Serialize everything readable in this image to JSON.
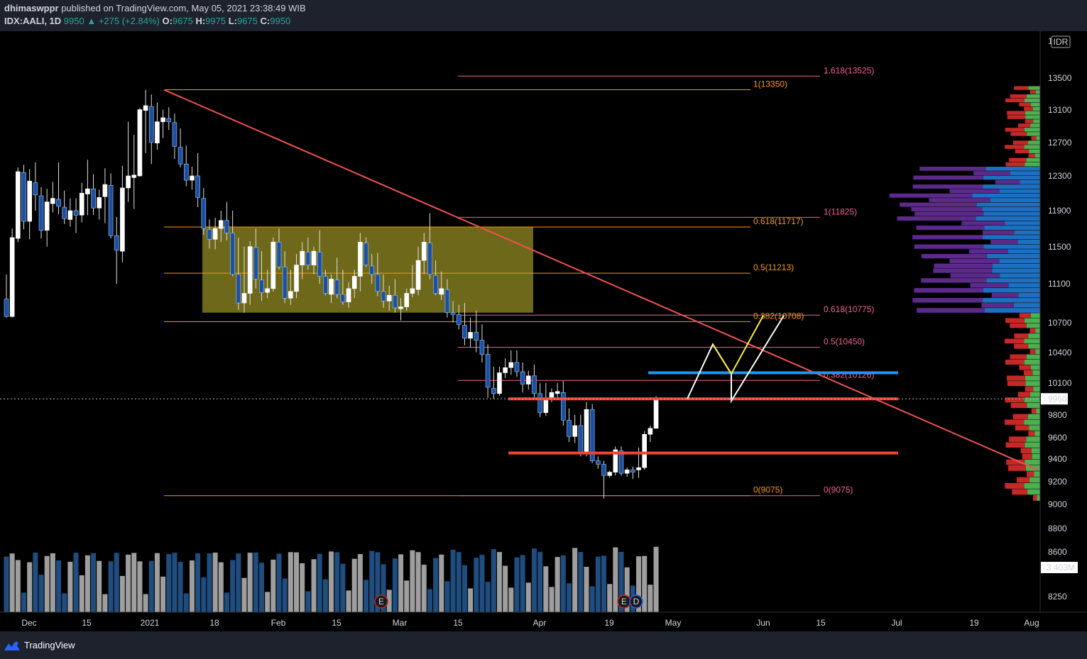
{
  "header": {
    "author": "dhimaswppr",
    "published_text": "published on TradingView.com, May 05, 2021 23:38:49 WIB",
    "symbol": "IDX:AALI, 1D",
    "last": "9950",
    "change": "▲ +275 (+2.84%)",
    "o_label": "O:",
    "o_val": "9675",
    "h_label": "H:",
    "h_val": "9975",
    "l_label": "L:",
    "l_val": "9675",
    "c_label": "C:",
    "c_val": "9950"
  },
  "footer": {
    "brand": "TradingView"
  },
  "colors": {
    "background": "#000000",
    "up_candle": "#ffffff",
    "down_candle": "#1e4fa3",
    "volume_up": "#9e9e9e",
    "volume_down": "#1f4d7f",
    "trendline": "#ef5350",
    "support": "#f44336",
    "blue_level": "#2196f3",
    "box_fill": "#807a1e",
    "fib_orange": "#ff9800",
    "fib_pink": "#f06292"
  },
  "chart_data": {
    "type": "candlestick",
    "symbol": "IDX:AALI",
    "interval": "1D",
    "currency": "IDR",
    "y_range": [
      8150,
      14050
    ],
    "y_scale": "log",
    "y_ticks": [
      "14",
      "13500",
      "13100",
      "12700",
      "12300",
      "11900",
      "11500",
      "11100",
      "10700",
      "10400",
      "10100",
      "9800",
      "9600",
      "9400",
      "9200",
      "9000",
      "8800",
      "8600",
      "8250"
    ],
    "x_ticks": [
      "Dec",
      "15",
      "2021",
      "18",
      "Feb",
      "15",
      "Mar",
      "15",
      "Apr",
      "19",
      "May",
      "Jun",
      "15",
      "Jul",
      "19",
      "Aug"
    ],
    "last_price_label": "9950",
    "volume_label": "3.403M",
    "event_markers": [
      "E",
      "E",
      "D"
    ],
    "fib_levels": [
      {
        "text": "1.618(13525)",
        "value": 13525,
        "color": "pink"
      },
      {
        "text": "1(13350)",
        "value": 13350,
        "color": "orange"
      },
      {
        "text": "1(11825)",
        "value": 11825,
        "color": "pink"
      },
      {
        "text": "0.618(11717)",
        "value": 11717,
        "color": "orange"
      },
      {
        "text": "0.5(11213)",
        "value": 11213,
        "color": "orange"
      },
      {
        "text": "0.618(10775)",
        "value": 10775,
        "color": "pink"
      },
      {
        "text": "0.382(10708)",
        "value": 10708,
        "color": "orange"
      },
      {
        "text": "0.5(10450)",
        "value": 10450,
        "color": "pink"
      },
      {
        "text": "0.382(10126)",
        "value": 10126,
        "color": "pink"
      },
      {
        "text": "0(9075)",
        "value": 9075,
        "color": "orange"
      },
      {
        "text": "0(9075)",
        "value": 9075,
        "color": "pink"
      }
    ],
    "consolidation_box": {
      "top": 11717,
      "bottom": 10800
    },
    "support_levels": [
      9950,
      9450
    ],
    "blue_level": 10200,
    "trendline": {
      "from": 13350,
      "to": 9300
    },
    "projection_white": [
      9950,
      10480,
      10190,
      9930,
      10770
    ],
    "projection_yellow": [
      10190,
      10770
    ],
    "candles": [
      [
        10940,
        11200,
        10750,
        10760
      ],
      [
        10760,
        11700,
        10750,
        11600
      ],
      [
        11590,
        12400,
        11550,
        12350
      ],
      [
        12340,
        12430,
        11690,
        11780
      ],
      [
        11780,
        12380,
        11580,
        12240
      ],
      [
        12220,
        12460,
        11900,
        12080
      ],
      [
        12070,
        12170,
        11590,
        11680
      ],
      [
        11680,
        12150,
        11500,
        12000
      ],
      [
        11980,
        12230,
        11880,
        12040
      ],
      [
        12030,
        12460,
        11860,
        11950
      ],
      [
        11940,
        12130,
        11750,
        11810
      ],
      [
        11800,
        12040,
        11720,
        11900
      ],
      [
        11900,
        12040,
        11650,
        11850
      ],
      [
        11850,
        12220,
        11770,
        12100
      ],
      [
        12090,
        12490,
        11850,
        12150
      ],
      [
        12150,
        12320,
        11850,
        11930
      ],
      [
        11930,
        12140,
        11800,
        12050
      ],
      [
        12060,
        12390,
        11760,
        12200
      ],
      [
        12190,
        12330,
        11590,
        11620
      ],
      [
        11620,
        11830,
        11100,
        11460
      ],
      [
        11450,
        12420,
        11330,
        12160
      ],
      [
        12160,
        12950,
        12000,
        12300
      ],
      [
        12280,
        12790,
        11920,
        12310
      ],
      [
        12300,
        13120,
        12290,
        13100
      ],
      [
        13090,
        13350,
        12570,
        13150
      ],
      [
        13140,
        13290,
        12440,
        12700
      ],
      [
        12690,
        13190,
        12610,
        12950
      ],
      [
        12950,
        13100,
        12750,
        13000
      ],
      [
        12990,
        13130,
        12850,
        12950
      ],
      [
        12940,
        13050,
        12500,
        12650
      ],
      [
        12640,
        12870,
        12400,
        12440
      ],
      [
        12440,
        12660,
        12180,
        12250
      ],
      [
        12250,
        12410,
        12140,
        12300
      ],
      [
        12300,
        12570,
        11940,
        12050
      ],
      [
        12040,
        12160,
        11630,
        11700
      ],
      [
        11690,
        11800,
        11480,
        11580
      ],
      [
        11580,
        11820,
        11470,
        11700
      ],
      [
        11700,
        11900,
        11550,
        11790
      ],
      [
        11790,
        12000,
        11570,
        11650
      ],
      [
        11650,
        11900,
        11180,
        11200
      ],
      [
        11200,
        11600,
        10830,
        10900
      ],
      [
        10900,
        11500,
        10800,
        11000
      ],
      [
        11000,
        11560,
        10880,
        11500
      ],
      [
        11490,
        11700,
        11050,
        11150
      ],
      [
        11140,
        11450,
        10920,
        11010
      ],
      [
        11010,
        11250,
        10950,
        11050
      ],
      [
        11050,
        11600,
        11020,
        11550
      ],
      [
        11550,
        11700,
        11250,
        11280
      ],
      [
        11280,
        11450,
        10900,
        10950
      ],
      [
        10950,
        11250,
        10880,
        11020
      ],
      [
        11020,
        11420,
        10950,
        11300
      ],
      [
        11300,
        11550,
        11150,
        11450
      ],
      [
        11440,
        11600,
        11250,
        11300
      ],
      [
        11300,
        11500,
        11200,
        11450
      ],
      [
        11440,
        11680,
        11100,
        11180
      ],
      [
        11180,
        11250,
        10980,
        11000
      ],
      [
        10990,
        11200,
        10900,
        11150
      ],
      [
        11140,
        11380,
        10950,
        10990
      ],
      [
        10990,
        11250,
        10880,
        10910
      ],
      [
        10910,
        11120,
        10850,
        11050
      ],
      [
        11050,
        11250,
        10950,
        11180
      ],
      [
        11180,
        11650,
        11020,
        11550
      ],
      [
        11540,
        11600,
        11280,
        11300
      ],
      [
        11290,
        11420,
        11100,
        11200
      ],
      [
        11200,
        11430,
        10970,
        11020
      ],
      [
        11020,
        11200,
        10850,
        10920
      ],
      [
        10920,
        11080,
        10820,
        10980
      ],
      [
        10980,
        11150,
        10800,
        10850
      ],
      [
        10840,
        10950,
        10720,
        10860
      ],
      [
        10860,
        11050,
        10820,
        11000
      ],
      [
        11000,
        11300,
        10960,
        11050
      ],
      [
        11040,
        11500,
        10980,
        11350
      ],
      [
        11350,
        11650,
        11200,
        11550
      ],
      [
        11540,
        11870,
        11150,
        11200
      ],
      [
        11190,
        11350,
        10980,
        11000
      ],
      [
        10990,
        11230,
        10930,
        11050
      ],
      [
        11040,
        11150,
        10750,
        10800
      ],
      [
        10800,
        10920,
        10700,
        10780
      ],
      [
        10780,
        10880,
        10630,
        10680
      ],
      [
        10670,
        10900,
        10470,
        10540
      ],
      [
        10540,
        10750,
        10450,
        10600
      ],
      [
        10600,
        10820,
        10400,
        10520
      ],
      [
        10520,
        10680,
        10300,
        10380
      ],
      [
        10380,
        10480,
        9960,
        10060
      ],
      [
        10050,
        10260,
        9950,
        10000
      ],
      [
        10000,
        10260,
        9980,
        10200
      ],
      [
        10200,
        10340,
        10150,
        10250
      ],
      [
        10250,
        10420,
        10180,
        10300
      ],
      [
        10300,
        10420,
        10160,
        10210
      ],
      [
        10210,
        10300,
        10010,
        10090
      ],
      [
        10090,
        10220,
        10040,
        10170
      ],
      [
        10170,
        10280,
        9950,
        10000
      ],
      [
        10000,
        10100,
        9780,
        9820
      ],
      [
        9820,
        10100,
        9790,
        9950
      ],
      [
        9950,
        10050,
        9920,
        10010
      ],
      [
        10000,
        10100,
        9950,
        10020
      ],
      [
        10010,
        10120,
        9700,
        9750
      ],
      [
        9750,
        9860,
        9550,
        9600
      ],
      [
        9600,
        9800,
        9540,
        9700
      ],
      [
        9700,
        9800,
        9420,
        9450
      ],
      [
        9450,
        9920,
        9420,
        9850
      ],
      [
        9850,
        9900,
        9360,
        9380
      ],
      [
        9380,
        9420,
        9310,
        9350
      ],
      [
        9350,
        9380,
        9050,
        9250
      ],
      [
        9250,
        9290,
        9230,
        9280
      ],
      [
        9280,
        9510,
        9250,
        9480
      ],
      [
        9470,
        9510,
        9250,
        9270
      ],
      [
        9270,
        9320,
        9240,
        9300
      ],
      [
        9300,
        9330,
        9220,
        9280
      ],
      [
        9300,
        9500,
        9230,
        9320
      ],
      [
        9320,
        9650,
        9300,
        9620
      ],
      [
        9620,
        9700,
        9550,
        9675
      ],
      [
        9675,
        9975,
        9675,
        9950
      ]
    ]
  }
}
